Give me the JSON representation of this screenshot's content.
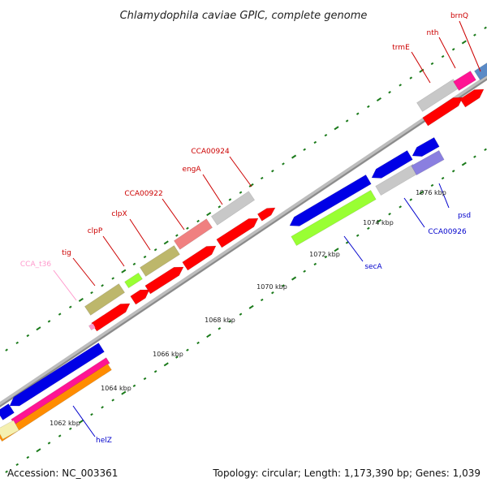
{
  "title": "Chlamydophila caviae GPIC, complete genome",
  "footer": {
    "accession": "Accession: NC_003361",
    "summary": "Topology: circular; Length: 1,173,390 bp; Genes: 1,039"
  },
  "colors": {
    "cds_red": "#ff0000",
    "gene_blue": "#0000e6",
    "gene_grey": "#c8c8c8",
    "gene_olive": "#bdb76b",
    "gene_pink_light": "#f08080",
    "gene_lime": "#99ff33",
    "gene_magenta": "#ff1493",
    "gene_orange": "#ff8c00",
    "gene_cream": "#f5f0b0",
    "gene_slate": "#8a7fe0",
    "gene_steel": "#5a8ac6",
    "backbone": "#999999",
    "tick": "#1a7a1a",
    "label_red": "#cc0000",
    "label_blue": "#0000cc",
    "label_pink": "#ff99cc"
  },
  "ticks": [
    "1062 kbp",
    "1064 kbp",
    "1066 kbp",
    "1068 kbp",
    "1070 kbp",
    "1072 kbp",
    "1074 kbp",
    "1076 kbp"
  ],
  "labels": {
    "brnQ": "brnQ",
    "nth": "nth",
    "trmE": "trmE",
    "CCA00924": "CCA00924",
    "engA": "engA",
    "CCA00922": "CCA00922",
    "clpX": "clpX",
    "clpP": "clpP",
    "tig": "tig",
    "CCA_t36": "CCA_t36",
    "psd": "psd",
    "CCA00926": "CCA00926",
    "secA": "secA",
    "helZ": "helZ"
  }
}
